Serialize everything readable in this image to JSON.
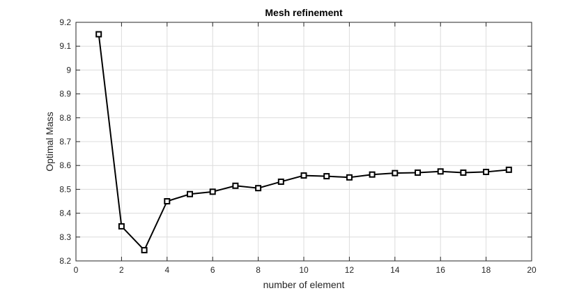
{
  "chart_data": {
    "type": "line",
    "title": "Mesh refinement",
    "xlabel": "number of element",
    "ylabel": "Optimal Mass",
    "xlim": [
      0,
      20
    ],
    "ylim": [
      8.2,
      9.2
    ],
    "xticks": [
      0,
      2,
      4,
      6,
      8,
      10,
      12,
      14,
      16,
      18,
      20
    ],
    "yticks": [
      8.2,
      8.3,
      8.4,
      8.5,
      8.6,
      8.7,
      8.8,
      8.9,
      9,
      9.1,
      9.2
    ],
    "xtick_labels": [
      "0",
      "2",
      "4",
      "6",
      "8",
      "10",
      "12",
      "14",
      "16",
      "18",
      "20"
    ],
    "ytick_labels": [
      "8.2",
      "8.3",
      "8.4",
      "8.5",
      "8.6",
      "8.7",
      "8.8",
      "8.9",
      "9",
      "9.1",
      "9.2"
    ],
    "grid": true,
    "marker": "square",
    "colors": {
      "line": "#000000",
      "grid": "#dcdcdc",
      "axis": "#262626"
    },
    "series": [
      {
        "x": [
          1,
          2,
          3,
          4,
          5,
          6,
          7,
          8,
          9,
          10,
          11,
          12,
          13,
          14,
          15,
          16,
          17,
          18,
          19
        ],
        "y": [
          9.15,
          8.345,
          8.245,
          8.45,
          8.48,
          8.49,
          8.515,
          8.505,
          8.532,
          8.558,
          8.555,
          8.55,
          8.562,
          8.568,
          8.57,
          8.575,
          8.57,
          8.573,
          8.582
        ]
      }
    ]
  }
}
